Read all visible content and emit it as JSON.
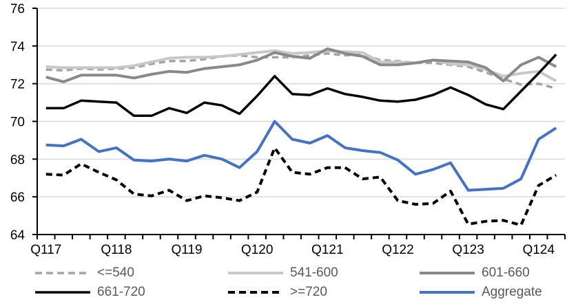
{
  "chart_data": {
    "type": "line",
    "title": "",
    "xlabel": "",
    "ylabel": "",
    "ylim": [
      64,
      76
    ],
    "y_ticks": [
      64,
      66,
      68,
      70,
      72,
      74,
      76
    ],
    "grid": true,
    "legend_position": "bottom",
    "x_visible_year_labels": [
      "Q117",
      "Q118",
      "Q119",
      "Q120",
      "Q121",
      "Q122",
      "Q123",
      "Q124"
    ],
    "x_quarters": [
      "Q117",
      "Q217",
      "Q317",
      "Q417",
      "Q118",
      "Q218",
      "Q318",
      "Q418",
      "Q119",
      "Q219",
      "Q319",
      "Q419",
      "Q120",
      "Q220",
      "Q320",
      "Q420",
      "Q121",
      "Q221",
      "Q321",
      "Q421",
      "Q122",
      "Q222",
      "Q322",
      "Q422",
      "Q123",
      "Q223",
      "Q323",
      "Q423",
      "Q124",
      "Q224"
    ],
    "axis_color": "#000000",
    "gridline_color": "#d9d9d9",
    "legend_text_color": "#595959",
    "series": [
      {
        "name": "<=540",
        "color": "#a3a3a3",
        "dash": "dashed",
        "width": 3.5,
        "values": [
          72.75,
          72.7,
          72.8,
          72.75,
          72.8,
          72.85,
          73.05,
          73.2,
          73.2,
          73.3,
          73.45,
          73.5,
          73.4,
          73.4,
          73.4,
          73.5,
          73.6,
          73.5,
          73.55,
          73.25,
          73.2,
          73.1,
          73.1,
          73.0,
          72.9,
          72.6,
          72.25,
          71.95,
          72.0,
          71.75
        ]
      },
      {
        "name": "541-600",
        "color": "#c8c8c8",
        "dash": "solid",
        "width": 4,
        "values": [
          72.9,
          72.85,
          72.85,
          72.85,
          72.85,
          72.95,
          73.15,
          73.35,
          73.4,
          73.4,
          73.45,
          73.55,
          73.65,
          73.75,
          73.6,
          73.65,
          73.75,
          73.7,
          73.65,
          73.15,
          73.15,
          73.1,
          73.25,
          73.05,
          73.0,
          72.75,
          72.4,
          72.55,
          72.65,
          72.15
        ]
      },
      {
        "name": "601-660",
        "color": "#898989",
        "dash": "solid",
        "width": 4,
        "values": [
          72.35,
          72.1,
          72.45,
          72.45,
          72.45,
          72.3,
          72.5,
          72.65,
          72.6,
          72.8,
          72.9,
          73.0,
          73.25,
          73.65,
          73.45,
          73.35,
          73.85,
          73.6,
          73.45,
          73.0,
          73.0,
          73.1,
          73.25,
          73.2,
          73.15,
          72.85,
          72.15,
          73.0,
          73.4,
          72.9
        ]
      },
      {
        "name": "661-720",
        "color": "#000000",
        "dash": "solid",
        "width": 3.5,
        "values": [
          70.7,
          70.7,
          71.1,
          71.05,
          71.0,
          70.3,
          70.3,
          70.7,
          70.45,
          71.0,
          70.85,
          70.4,
          71.35,
          72.4,
          71.45,
          71.4,
          71.75,
          71.45,
          71.3,
          71.1,
          71.05,
          71.15,
          71.4,
          71.8,
          71.4,
          70.9,
          70.65,
          71.6,
          72.55,
          73.55
        ]
      },
      {
        "name": ">=720",
        "color": "#000000",
        "dash": "dashed",
        "width": 4,
        "values": [
          67.2,
          67.15,
          67.75,
          67.3,
          66.9,
          66.15,
          66.05,
          66.35,
          65.8,
          66.05,
          65.95,
          65.8,
          66.25,
          68.6,
          67.3,
          67.2,
          67.55,
          67.55,
          66.95,
          67.05,
          65.8,
          65.6,
          65.65,
          66.3,
          64.55,
          64.7,
          64.75,
          64.5,
          66.6,
          67.15
        ]
      },
      {
        "name": "Aggregate",
        "color": "#4472c4",
        "dash": "solid",
        "width": 4,
        "values": [
          68.75,
          68.7,
          69.05,
          68.4,
          68.6,
          67.95,
          67.9,
          68.0,
          67.9,
          68.2,
          68.0,
          67.55,
          68.4,
          70.0,
          69.05,
          68.85,
          69.25,
          68.6,
          68.45,
          68.35,
          67.95,
          67.2,
          67.45,
          67.8,
          66.35,
          66.4,
          66.45,
          66.95,
          69.05,
          69.65
        ]
      }
    ]
  }
}
